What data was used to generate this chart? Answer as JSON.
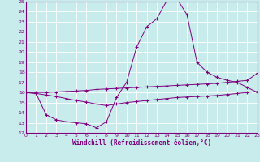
{
  "title": "",
  "xlabel": "Windchill (Refroidissement éolien,°C)",
  "xlim": [
    0,
    23
  ],
  "ylim": [
    12,
    25
  ],
  "yticks": [
    12,
    13,
    14,
    15,
    16,
    17,
    18,
    19,
    20,
    21,
    22,
    23,
    24,
    25
  ],
  "xticks": [
    0,
    1,
    2,
    3,
    4,
    5,
    6,
    7,
    8,
    9,
    10,
    11,
    12,
    13,
    14,
    15,
    16,
    17,
    18,
    19,
    20,
    21,
    22,
    23
  ],
  "bg_color": "#c8ecec",
  "line_color": "#800080",
  "grid_color": "#ffffff",
  "lines": [
    {
      "x": [
        0,
        1,
        2,
        3,
        4,
        5,
        6,
        7,
        8,
        9,
        10,
        11,
        12,
        13,
        14,
        15,
        16,
        17,
        18,
        19,
        20,
        21,
        22,
        23
      ],
      "y": [
        16.0,
        16.0,
        16.0,
        16.05,
        16.1,
        16.15,
        16.2,
        16.3,
        16.35,
        16.4,
        16.45,
        16.5,
        16.55,
        16.6,
        16.65,
        16.7,
        16.75,
        16.8,
        16.85,
        16.9,
        17.0,
        17.1,
        17.2,
        17.9
      ]
    },
    {
      "x": [
        0,
        1,
        2,
        3,
        4,
        5,
        6,
        7,
        8,
        9,
        10,
        11,
        12,
        13,
        14,
        15,
        16,
        17,
        18,
        19,
        20,
        21,
        22,
        23
      ],
      "y": [
        16.0,
        15.9,
        15.75,
        15.6,
        15.4,
        15.2,
        15.05,
        14.85,
        14.7,
        14.85,
        15.0,
        15.1,
        15.2,
        15.3,
        15.4,
        15.5,
        15.55,
        15.6,
        15.65,
        15.7,
        15.8,
        15.9,
        16.0,
        16.1
      ]
    },
    {
      "x": [
        0,
        1,
        2,
        3,
        4,
        5,
        6,
        7,
        8,
        9,
        10,
        11,
        12,
        13,
        14,
        15,
        16,
        17,
        18,
        19,
        20,
        21,
        22,
        23
      ],
      "y": [
        16.0,
        15.9,
        13.8,
        13.3,
        13.1,
        13.0,
        12.9,
        12.5,
        13.1,
        15.5,
        17.0,
        20.5,
        22.5,
        23.3,
        25.1,
        25.3,
        23.7,
        19.0,
        18.0,
        17.5,
        17.2,
        17.0,
        16.5,
        16.0
      ]
    }
  ]
}
